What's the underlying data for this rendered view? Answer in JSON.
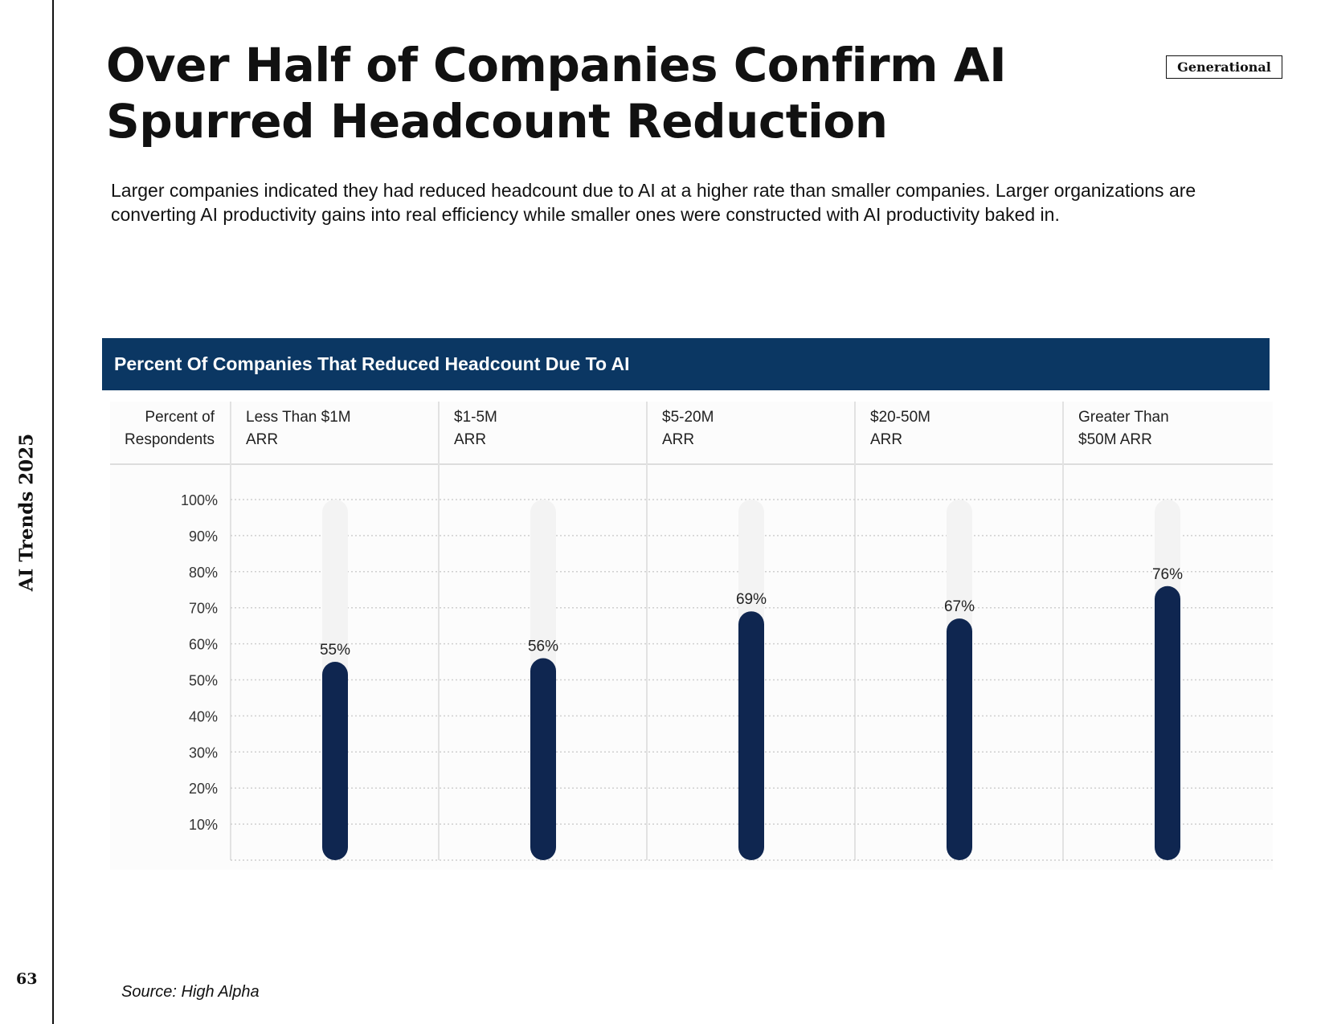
{
  "sidebar": {
    "report_name": "AI Trends 2025",
    "page_number": "63"
  },
  "badge": "Generational",
  "title": "Over Half of Companies Confirm AI Spurred Headcount Reduction",
  "description": "Larger companies indicated they had reduced headcount due to AI at a higher rate than smaller companies. Larger organizations are converting AI productivity gains into real efficiency while smaller ones were constructed with AI productivity baked in.",
  "source": "Source: High Alpha",
  "colors": {
    "header_bg": "#0b3763",
    "bar": "#0f2650",
    "track": "#f3f3f3",
    "grid": "#cfcfcf"
  },
  "chart_data": {
    "type": "bar",
    "title": "Percent Of Companies That Reduced Headcount Due To AI",
    "ylabel_lines": [
      "Percent of",
      "Respondents"
    ],
    "categories": [
      [
        "Less Than $1M",
        "ARR"
      ],
      [
        "$1-5M",
        "ARR"
      ],
      [
        "$5-20M",
        "ARR"
      ],
      [
        "$20-50M",
        "ARR"
      ],
      [
        "Greater Than",
        "$50M ARR"
      ]
    ],
    "values": [
      55,
      56,
      69,
      67,
      76
    ],
    "value_labels": [
      "55%",
      "56%",
      "69%",
      "67%",
      "76%"
    ],
    "yticks": [
      "10%",
      "20%",
      "30%",
      "40%",
      "50%",
      "60%",
      "70%",
      "80%",
      "90%",
      "100%"
    ],
    "ylim": [
      0,
      100
    ],
    "grid": true
  }
}
